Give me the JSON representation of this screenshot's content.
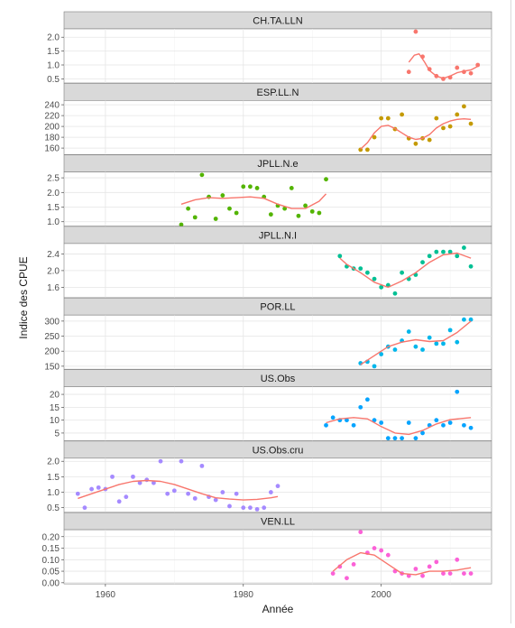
{
  "chart_data": {
    "type": "scatter",
    "layout": "faceted-vertical",
    "xlabel": "Année",
    "ylabel": "Indice des CPUE",
    "xlim": [
      1954,
      2016
    ],
    "xticks": [
      1960,
      1980,
      2000
    ],
    "grid": true,
    "smoother_color": "#f8766d",
    "panels": [
      {
        "name": "CH.TA.LLN",
        "color": "#f8766d",
        "ylim": [
          0.35,
          2.3
        ],
        "yticks": [
          0.5,
          1.0,
          1.5,
          2.0
        ],
        "ytick_labels": [
          "0.5",
          "1.0",
          "1.5",
          "2.0"
        ],
        "points": [
          [
            2004,
            0.75
          ],
          [
            2005,
            2.2
          ],
          [
            2006,
            1.3
          ],
          [
            2007,
            0.85
          ],
          [
            2008,
            0.6
          ],
          [
            2009,
            0.5
          ],
          [
            2010,
            0.55
          ],
          [
            2011,
            0.9
          ],
          [
            2012,
            0.75
          ],
          [
            2013,
            0.7
          ],
          [
            2014,
            1.0
          ]
        ],
        "smooth": [
          [
            2004,
            1.1
          ],
          [
            2004.8,
            1.35
          ],
          [
            2005.5,
            1.4
          ],
          [
            2006.3,
            1.1
          ],
          [
            2007,
            0.8
          ],
          [
            2008,
            0.6
          ],
          [
            2009,
            0.52
          ],
          [
            2010,
            0.6
          ],
          [
            2011,
            0.72
          ],
          [
            2012,
            0.78
          ],
          [
            2013,
            0.82
          ],
          [
            2014,
            0.95
          ]
        ]
      },
      {
        "name": "ESP.LL.N",
        "color": "#c49a00",
        "ylim": [
          148,
          248
        ],
        "yticks": [
          160,
          180,
          200,
          220,
          240
        ],
        "ytick_labels": [
          "160",
          "180",
          "200",
          "220",
          "240"
        ],
        "points": [
          [
            1997,
            157
          ],
          [
            1998,
            157
          ],
          [
            1999,
            180
          ],
          [
            2000,
            215
          ],
          [
            2001,
            215
          ],
          [
            2002,
            195
          ],
          [
            2003,
            222
          ],
          [
            2004,
            178
          ],
          [
            2005,
            168
          ],
          [
            2006,
            178
          ],
          [
            2007,
            175
          ],
          [
            2008,
            215
          ],
          [
            2009,
            197
          ],
          [
            2010,
            200
          ],
          [
            2011,
            222
          ],
          [
            2012,
            237
          ],
          [
            2013,
            205
          ]
        ],
        "smooth": [
          [
            1997,
            158
          ],
          [
            1998,
            170
          ],
          [
            1999,
            188
          ],
          [
            2000,
            200
          ],
          [
            2001,
            202
          ],
          [
            2002,
            196
          ],
          [
            2003,
            188
          ],
          [
            2004,
            180
          ],
          [
            2005,
            176
          ],
          [
            2006,
            178
          ],
          [
            2007,
            185
          ],
          [
            2008,
            197
          ],
          [
            2009,
            205
          ],
          [
            2010,
            210
          ],
          [
            2011,
            213
          ],
          [
            2012,
            214
          ],
          [
            2013,
            213
          ]
        ]
      },
      {
        "name": "JPLL.N.e",
        "color": "#53b400",
        "ylim": [
          0.85,
          2.7
        ],
        "yticks": [
          1.0,
          1.5,
          2.0,
          2.5
        ],
        "ytick_labels": [
          "1.0",
          "1.5",
          "2.0",
          "2.5"
        ],
        "points": [
          [
            1971,
            0.9
          ],
          [
            1972,
            1.45
          ],
          [
            1973,
            1.15
          ],
          [
            1974,
            2.6
          ],
          [
            1975,
            1.85
          ],
          [
            1976,
            1.1
          ],
          [
            1977,
            1.9
          ],
          [
            1978,
            1.45
          ],
          [
            1979,
            1.3
          ],
          [
            1980,
            2.2
          ],
          [
            1981,
            2.2
          ],
          [
            1982,
            2.15
          ],
          [
            1983,
            1.85
          ],
          [
            1984,
            1.25
          ],
          [
            1985,
            1.55
          ],
          [
            1986,
            1.45
          ],
          [
            1987,
            2.15
          ],
          [
            1988,
            1.2
          ],
          [
            1989,
            1.55
          ],
          [
            1990,
            1.35
          ],
          [
            1991,
            1.3
          ],
          [
            1992,
            2.45
          ]
        ],
        "smooth": [
          [
            1971,
            1.6
          ],
          [
            1973,
            1.75
          ],
          [
            1975,
            1.82
          ],
          [
            1977,
            1.8
          ],
          [
            1979,
            1.82
          ],
          [
            1981,
            1.85
          ],
          [
            1983,
            1.8
          ],
          [
            1985,
            1.6
          ],
          [
            1987,
            1.45
          ],
          [
            1989,
            1.45
          ],
          [
            1991,
            1.7
          ],
          [
            1992,
            1.95
          ]
        ]
      },
      {
        "name": "JPLL.N.I",
        "color": "#00c094",
        "ylim": [
          1.35,
          2.65
        ],
        "yticks": [
          1.6,
          2.0,
          2.4
        ],
        "ytick_labels": [
          "1.6",
          "2.0",
          "2.4"
        ],
        "points": [
          [
            1994,
            2.35
          ],
          [
            1995,
            2.1
          ],
          [
            1996,
            2.05
          ],
          [
            1997,
            2.05
          ],
          [
            1998,
            1.95
          ],
          [
            1999,
            1.8
          ],
          [
            2000,
            1.6
          ],
          [
            2001,
            1.65
          ],
          [
            2002,
            1.45
          ],
          [
            2003,
            1.95
          ],
          [
            2004,
            1.8
          ],
          [
            2005,
            1.9
          ],
          [
            2006,
            2.2
          ],
          [
            2007,
            2.35
          ],
          [
            2008,
            2.45
          ],
          [
            2009,
            2.45
          ],
          [
            2010,
            2.45
          ],
          [
            2011,
            2.35
          ],
          [
            2012,
            2.55
          ],
          [
            2013,
            2.1
          ]
        ],
        "smooth": [
          [
            1994,
            2.3
          ],
          [
            1995,
            2.15
          ],
          [
            1997,
            1.95
          ],
          [
            1999,
            1.72
          ],
          [
            2001,
            1.6
          ],
          [
            2003,
            1.75
          ],
          [
            2005,
            1.95
          ],
          [
            2007,
            2.2
          ],
          [
            2009,
            2.38
          ],
          [
            2011,
            2.42
          ],
          [
            2013,
            2.3
          ]
        ]
      },
      {
        "name": "POR.LL",
        "color": "#00b6eb",
        "ylim": [
          140,
          320
        ],
        "yticks": [
          150,
          200,
          250,
          300
        ],
        "ytick_labels": [
          "150",
          "200",
          "250",
          "300"
        ],
        "points": [
          [
            1997,
            160
          ],
          [
            1998,
            165
          ],
          [
            1999,
            150
          ],
          [
            2000,
            190
          ],
          [
            2001,
            215
          ],
          [
            2002,
            205
          ],
          [
            2003,
            235
          ],
          [
            2004,
            265
          ],
          [
            2005,
            215
          ],
          [
            2006,
            205
          ],
          [
            2007,
            245
          ],
          [
            2008,
            225
          ],
          [
            2009,
            225
          ],
          [
            2010,
            270
          ],
          [
            2011,
            230
          ],
          [
            2012,
            305
          ],
          [
            2013,
            305
          ]
        ],
        "smooth": [
          [
            1997,
            155
          ],
          [
            1999,
            185
          ],
          [
            2001,
            215
          ],
          [
            2003,
            230
          ],
          [
            2005,
            238
          ],
          [
            2007,
            232
          ],
          [
            2009,
            235
          ],
          [
            2011,
            262
          ],
          [
            2013,
            300
          ]
        ]
      },
      {
        "name": "US.Obs",
        "color": "#06a4ff",
        "ylim": [
          2,
          23
        ],
        "yticks": [
          5,
          10,
          15,
          20
        ],
        "ytick_labels": [
          "5",
          "10",
          "15",
          "20"
        ],
        "points": [
          [
            1992,
            8
          ],
          [
            1993,
            11
          ],
          [
            1994,
            10
          ],
          [
            1995,
            10
          ],
          [
            1996,
            8
          ],
          [
            1997,
            15
          ],
          [
            1998,
            18
          ],
          [
            1999,
            10
          ],
          [
            2000,
            9
          ],
          [
            2001,
            3
          ],
          [
            2002,
            3
          ],
          [
            2003,
            3
          ],
          [
            2004,
            9
          ],
          [
            2005,
            3
          ],
          [
            2006,
            5
          ],
          [
            2007,
            8
          ],
          [
            2008,
            10
          ],
          [
            2009,
            8
          ],
          [
            2010,
            9
          ],
          [
            2011,
            21
          ],
          [
            2012,
            8
          ],
          [
            2013,
            7
          ]
        ],
        "smooth": [
          [
            1992,
            9
          ],
          [
            1994,
            10.5
          ],
          [
            1996,
            11
          ],
          [
            1998,
            10.5
          ],
          [
            2000,
            7.5
          ],
          [
            2002,
            5
          ],
          [
            2004,
            4.5
          ],
          [
            2006,
            6
          ],
          [
            2008,
            8.5
          ],
          [
            2010,
            10.2
          ],
          [
            2013,
            11
          ]
        ]
      },
      {
        "name": "US.Obs.cru",
        "color": "#a58aff",
        "ylim": [
          0.35,
          2.1
        ],
        "yticks": [
          0.5,
          1.0,
          1.5,
          2.0
        ],
        "ytick_labels": [
          "0.5",
          "1.0",
          "1.5",
          "2.0"
        ],
        "points": [
          [
            1956,
            0.95
          ],
          [
            1957,
            0.5
          ],
          [
            1958,
            1.1
          ],
          [
            1959,
            1.15
          ],
          [
            1960,
            1.1
          ],
          [
            1961,
            1.5
          ],
          [
            1962,
            0.7
          ],
          [
            1963,
            0.85
          ],
          [
            1964,
            1.5
          ],
          [
            1965,
            1.3
          ],
          [
            1966,
            1.4
          ],
          [
            1967,
            1.3
          ],
          [
            1968,
            2.0
          ],
          [
            1969,
            0.95
          ],
          [
            1970,
            1.05
          ],
          [
            1971,
            2.0
          ],
          [
            1972,
            0.95
          ],
          [
            1973,
            0.8
          ],
          [
            1974,
            1.85
          ],
          [
            1975,
            0.85
          ],
          [
            1976,
            0.75
          ],
          [
            1977,
            1.0
          ],
          [
            1978,
            0.55
          ],
          [
            1979,
            0.95
          ],
          [
            1980,
            0.5
          ],
          [
            1981,
            0.5
          ],
          [
            1982,
            0.45
          ],
          [
            1983,
            0.5
          ],
          [
            1984,
            1.0
          ],
          [
            1985,
            1.2
          ]
        ],
        "smooth": [
          [
            1956,
            0.8
          ],
          [
            1958,
            0.95
          ],
          [
            1960,
            1.1
          ],
          [
            1962,
            1.25
          ],
          [
            1964,
            1.35
          ],
          [
            1966,
            1.38
          ],
          [
            1968,
            1.35
          ],
          [
            1970,
            1.25
          ],
          [
            1972,
            1.1
          ],
          [
            1974,
            0.95
          ],
          [
            1976,
            0.82
          ],
          [
            1978,
            0.78
          ],
          [
            1980,
            0.75
          ],
          [
            1982,
            0.77
          ],
          [
            1984,
            0.82
          ],
          [
            1985,
            0.86
          ]
        ]
      },
      {
        "name": "VEN.LL",
        "color": "#fb61d7",
        "ylim": [
          -0.005,
          0.23
        ],
        "yticks": [
          0.0,
          0.05,
          0.1,
          0.15,
          0.2
        ],
        "ytick_labels": [
          "0.00",
          "0.05",
          "0.10",
          "0.15",
          "0.20"
        ],
        "points": [
          [
            1993,
            0.04
          ],
          [
            1994,
            0.07
          ],
          [
            1995,
            0.02
          ],
          [
            1996,
            0.08
          ],
          [
            1997,
            0.22
          ],
          [
            1998,
            0.13
          ],
          [
            1999,
            0.15
          ],
          [
            2000,
            0.14
          ],
          [
            2001,
            0.12
          ],
          [
            2002,
            0.05
          ],
          [
            2003,
            0.04
          ],
          [
            2004,
            0.03
          ],
          [
            2005,
            0.06
          ],
          [
            2006,
            0.03
          ],
          [
            2007,
            0.07
          ],
          [
            2008,
            0.09
          ],
          [
            2009,
            0.04
          ],
          [
            2010,
            0.04
          ],
          [
            2011,
            0.1
          ],
          [
            2012,
            0.04
          ],
          [
            2013,
            0.04
          ]
        ],
        "smooth": [
          [
            1993,
            0.05
          ],
          [
            1995,
            0.1
          ],
          [
            1997,
            0.13
          ],
          [
            1999,
            0.12
          ],
          [
            2001,
            0.08
          ],
          [
            2003,
            0.04
          ],
          [
            2005,
            0.035
          ],
          [
            2007,
            0.05
          ],
          [
            2009,
            0.05
          ],
          [
            2011,
            0.055
          ],
          [
            2013,
            0.065
          ]
        ]
      }
    ]
  }
}
